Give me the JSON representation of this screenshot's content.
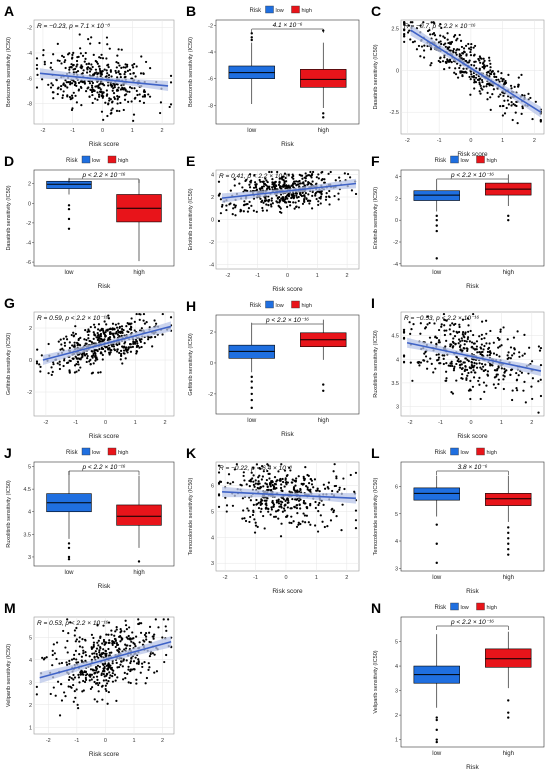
{
  "figure": {
    "colors": {
      "low": "#1f6fe0",
      "high": "#e8141a",
      "fit": "#3f63c7",
      "band": "#b9c6e8",
      "grid": "#e6e6e6",
      "point": "#000000"
    }
  },
  "chart_data": [
    {
      "id": "A",
      "type": "scatter",
      "panel_letter": "A",
      "annotation": "R = −0.23, p = 7.1 × 10⁻⁸",
      "xlabel": "Risk score",
      "ylabel": "Bortezomib sensitivity (IC50)",
      "xlim": [
        -2.3,
        2.4
      ],
      "ylim": [
        -9.6,
        -1.4
      ],
      "x_ticks": [
        -2,
        -1,
        0,
        1,
        2
      ],
      "y_ticks": [
        -8,
        -6,
        -4,
        -2
      ],
      "fit": {
        "x0": -2.1,
        "x1": 2.2,
        "y0": -5.6,
        "y1": -6.6
      },
      "cloud": {
        "n": 430,
        "mean_y": -5.9,
        "sd": 1.15,
        "seed": 11
      }
    },
    {
      "id": "B",
      "type": "boxplot",
      "panel_letter": "B",
      "legend_title": "Risk",
      "legend_items": [
        "low",
        "high"
      ],
      "annotation": "4.1 × 10⁻⁶",
      "xlabel": "Risk",
      "ylabel": "Bortezomib sensitivity (IC50)",
      "categories": [
        "low",
        "high"
      ],
      "ylim": [
        -9.4,
        -1.6
      ],
      "y_ticks": [
        -8,
        -6,
        -4,
        -2
      ],
      "boxes": [
        {
          "min": -7.9,
          "q1": -6.0,
          "median": -5.55,
          "q3": -5.05,
          "max": -3.3,
          "outliers": [
            -2.6,
            -2.9,
            -3.1
          ]
        },
        {
          "min": -8.2,
          "q1": -6.65,
          "median": -6.05,
          "q3": -5.3,
          "max": -3.3,
          "outliers": [
            -2.4,
            -8.6,
            -8.9
          ]
        }
      ]
    },
    {
      "id": "C",
      "type": "scatter",
      "panel_letter": "C",
      "annotation": "R = −0.7, p < 2.2 × 10⁻¹⁶",
      "xlabel": "Risk score",
      "ylabel": "Dasatinib sensitivity (IC50)",
      "xlim": [
        -2.2,
        2.3
      ],
      "ylim": [
        -3.8,
        3.0
      ],
      "x_ticks": [
        -2,
        -1,
        0,
        1,
        2
      ],
      "y_ticks": [
        -2.5,
        0.0,
        2.5
      ],
      "fit": {
        "x0": -1.9,
        "x1": 2.2,
        "y0": 2.4,
        "y1": -2.5
      },
      "cloud": {
        "n": 430,
        "mean_y": 0.5,
        "sd": 0.6,
        "seed": 23
      }
    },
    {
      "id": "D",
      "type": "boxplot",
      "panel_letter": "D",
      "legend_title": "Risk",
      "legend_items": [
        "low",
        "high"
      ],
      "annotation": "p < 2.2 × 10⁻¹⁶",
      "xlabel": "Risk",
      "ylabel": "Dasatinib sensitivity (IC50)",
      "categories": [
        "low",
        "high"
      ],
      "ylim": [
        -6.4,
        3.4
      ],
      "y_ticks": [
        -6,
        -4,
        -2,
        0,
        2
      ],
      "boxes": [
        {
          "min": 0.9,
          "q1": 1.5,
          "median": 1.95,
          "q3": 2.25,
          "max": 2.6,
          "outliers": [
            -0.2,
            -0.6,
            -1.6,
            -2.6
          ]
        },
        {
          "min": -5.9,
          "q1": -1.9,
          "median": -0.5,
          "q3": 0.9,
          "max": 2.4,
          "outliers": []
        }
      ]
    },
    {
      "id": "E",
      "type": "scatter",
      "panel_letter": "E",
      "annotation": "R = 0.41, p < 2.2 × 10⁻¹⁶",
      "xlabel": "Risk score",
      "ylabel": "Erlotinib sensitivity (IC50)",
      "xlim": [
        -2.4,
        2.4
      ],
      "ylim": [
        -4.4,
        4.4
      ],
      "x_ticks": [
        -2,
        -1,
        0,
        1,
        2
      ],
      "y_ticks": [
        -4,
        -2,
        0,
        2,
        4
      ],
      "fit": {
        "x0": -2.2,
        "x1": 2.3,
        "y0": 1.9,
        "y1": 3.2
      },
      "cloud": {
        "n": 480,
        "mean_y": 2.5,
        "sd": 0.75,
        "seed": 37
      }
    },
    {
      "id": "F",
      "type": "boxplot",
      "panel_letter": "F",
      "legend_title": "Risk",
      "legend_items": [
        "low",
        "high"
      ],
      "annotation": "p < 2.2 × 10⁻¹⁶",
      "xlabel": "Risk",
      "ylabel": "Erlotinib sensitivity (IC50)",
      "categories": [
        "low",
        "high"
      ],
      "ylim": [
        -4.2,
        4.6
      ],
      "y_ticks": [
        -4,
        -2,
        0,
        2,
        4
      ],
      "boxes": [
        {
          "min": 0.8,
          "q1": 1.8,
          "median": 2.3,
          "q3": 2.7,
          "max": 3.7,
          "outliers": [
            0.4,
            0.0,
            -0.5,
            -1.0,
            -3.5
          ]
        },
        {
          "min": 1.3,
          "q1": 2.3,
          "median": 2.85,
          "q3": 3.4,
          "max": 4.2,
          "outliers": [
            0.4,
            0.0
          ]
        }
      ]
    },
    {
      "id": "G",
      "type": "scatter",
      "panel_letter": "G",
      "annotation": "R = 0.59, p < 2.2 × 10⁻¹⁶",
      "xlabel": "Risk score",
      "ylabel": "Gefitinib sensitivity (IC50)",
      "xlim": [
        -2.4,
        2.3
      ],
      "ylim": [
        -3.5,
        3.0
      ],
      "x_ticks": [
        -2,
        -1,
        0,
        1,
        2
      ],
      "y_ticks": [
        -2,
        0,
        2
      ],
      "fit": {
        "x0": -2.1,
        "x1": 2.2,
        "y0": 0.0,
        "y1": 2.1
      },
      "cloud": {
        "n": 480,
        "mean_y": 1.0,
        "sd": 0.65,
        "seed": 53
      }
    },
    {
      "id": "H",
      "type": "boxplot",
      "panel_letter": "H",
      "legend_title": "Risk",
      "legend_items": [
        "low",
        "high"
      ],
      "annotation": "p < 2.2 × 10⁻¹⁶",
      "xlabel": "Risk",
      "ylabel": "Gefitinib sensitivity (IC50)",
      "categories": [
        "low",
        "high"
      ],
      "ylim": [
        -3.3,
        3.1
      ],
      "y_ticks": [
        -2,
        0,
        2
      ],
      "boxes": [
        {
          "min": -0.6,
          "q1": 0.3,
          "median": 0.75,
          "q3": 1.15,
          "max": 2.6,
          "outliers": [
            -0.9,
            -1.2,
            -1.6,
            -2.0,
            -2.4,
            -2.9
          ]
        },
        {
          "min": 0.2,
          "q1": 1.05,
          "median": 1.5,
          "q3": 1.95,
          "max": 2.8,
          "outliers": [
            -1.4,
            -1.8
          ]
        }
      ]
    },
    {
      "id": "I",
      "type": "scatter",
      "panel_letter": "I",
      "annotation": "R = −0.53, p < 2.2 × 10⁻¹⁶",
      "xlabel": "Risk score",
      "ylabel": "Ruxolitinib sensitivity (IC50)",
      "xlim": [
        -2.3,
        2.4
      ],
      "ylim": [
        2.8,
        5.0
      ],
      "x_ticks": [
        -2,
        -1,
        0,
        1,
        2
      ],
      "y_ticks": [
        3.0,
        3.5,
        4.0,
        4.5
      ],
      "fit": {
        "x0": -2.1,
        "x1": 2.3,
        "y0": 4.35,
        "y1": 3.75
      },
      "cloud": {
        "n": 430,
        "mean_y": 4.05,
        "sd": 0.35,
        "seed": 71
      }
    },
    {
      "id": "J",
      "type": "boxplot",
      "panel_letter": "J",
      "legend_title": "Risk",
      "legend_items": [
        "low",
        "high"
      ],
      "annotation": "p < 2.2 × 10⁻¹⁶",
      "xlabel": "Risk",
      "ylabel": "Ruxolitinib sensitivity (IC50)",
      "categories": [
        "low",
        "high"
      ],
      "ylim": [
        2.8,
        5.1
      ],
      "y_ticks": [
        3.0,
        3.5,
        4.0,
        4.5,
        5.0
      ],
      "boxes": [
        {
          "min": 3.4,
          "q1": 4.0,
          "median": 4.2,
          "q3": 4.4,
          "max": 4.9,
          "outliers": [
            3.3,
            3.2,
            3.0,
            2.95
          ]
        },
        {
          "min": 3.2,
          "q1": 3.7,
          "median": 3.9,
          "q3": 4.15,
          "max": 4.8,
          "outliers": [
            2.9
          ]
        }
      ]
    },
    {
      "id": "K",
      "type": "scatter",
      "panel_letter": "K",
      "annotation": "R = −0.22, p = 6.4 × 10⁻⁸",
      "xlabel": "Risk score",
      "ylabel": "Temozolomide sensitivity (IC50)",
      "xlim": [
        -2.3,
        2.4
      ],
      "ylim": [
        2.7,
        6.9
      ],
      "x_ticks": [
        -2,
        -1,
        0,
        1,
        2
      ],
      "y_ticks": [
        3,
        4,
        5,
        6
      ],
      "fit": {
        "x0": -2.1,
        "x1": 2.3,
        "y0": 5.75,
        "y1": 5.5
      },
      "cloud": {
        "n": 430,
        "mean_y": 5.6,
        "sd": 0.55,
        "seed": 89
      }
    },
    {
      "id": "L",
      "type": "boxplot",
      "panel_letter": "L",
      "legend_title": "Risk",
      "legend_items": [
        "low",
        "high"
      ],
      "annotation": "3.8 × 10⁻⁶",
      "xlabel": "Risk",
      "ylabel": "Temozolomide sensitivity (IC50)",
      "categories": [
        "low",
        "high"
      ],
      "ylim": [
        2.9,
        6.9
      ],
      "y_ticks": [
        3,
        4,
        5,
        6
      ],
      "boxes": [
        {
          "min": 4.9,
          "q1": 5.5,
          "median": 5.75,
          "q3": 5.95,
          "max": 6.4,
          "outliers": [
            4.6,
            3.9,
            3.2
          ]
        },
        {
          "min": 4.7,
          "q1": 5.3,
          "median": 5.55,
          "q3": 5.75,
          "max": 6.4,
          "outliers": [
            4.5,
            4.3,
            4.1,
            3.9,
            3.7,
            3.5
          ]
        }
      ]
    },
    {
      "id": "M",
      "type": "scatter",
      "panel_letter": "M",
      "annotation": "R = 0.53, p < 2.2 × 10⁻¹⁶",
      "xlabel": "Risk score",
      "ylabel": "Veliparib sensitivity (IC50)",
      "xlim": [
        -2.5,
        2.4
      ],
      "ylim": [
        0.7,
        5.9
      ],
      "x_ticks": [
        -2,
        -1,
        0,
        1,
        2
      ],
      "y_ticks": [
        1,
        2,
        3,
        4,
        5
      ],
      "fit": {
        "x0": -2.3,
        "x1": 2.3,
        "y0": 3.2,
        "y1": 4.8
      },
      "cloud": {
        "n": 480,
        "mean_y": 4.0,
        "sd": 0.75,
        "seed": 97
      }
    },
    {
      "id": "N",
      "type": "boxplot",
      "panel_letter": "N",
      "legend_title": "Risk",
      "legend_items": [
        "low",
        "high"
      ],
      "annotation": "p < 2.2 × 10⁻¹⁶",
      "xlabel": "Risk",
      "ylabel": "Veliparib sensitivity (IC50)",
      "categories": [
        "low",
        "high"
      ],
      "ylim": [
        0.7,
        6.0
      ],
      "y_ticks": [
        1,
        2,
        3,
        4,
        5
      ],
      "boxes": [
        {
          "min": 2.3,
          "q1": 3.3,
          "median": 3.65,
          "q3": 4.0,
          "max": 5.3,
          "outliers": [
            1.9,
            1.8,
            1.4,
            1.0,
            0.9
          ]
        },
        {
          "min": 3.1,
          "q1": 3.95,
          "median": 4.3,
          "q3": 4.7,
          "max": 5.4,
          "outliers": [
            2.6,
            2.1,
            1.9
          ]
        }
      ]
    }
  ]
}
